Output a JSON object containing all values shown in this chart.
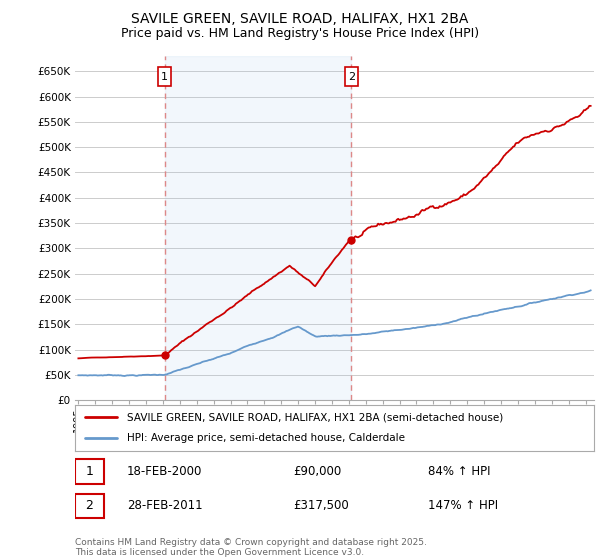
{
  "title": "SAVILE GREEN, SAVILE ROAD, HALIFAX, HX1 2BA",
  "subtitle": "Price paid vs. HM Land Registry's House Price Index (HPI)",
  "ylabel_ticks": [
    "£0",
    "£50K",
    "£100K",
    "£150K",
    "£200K",
    "£250K",
    "£300K",
    "£350K",
    "£400K",
    "£450K",
    "£500K",
    "£550K",
    "£600K",
    "£650K"
  ],
  "ytick_values": [
    0,
    50000,
    100000,
    150000,
    200000,
    250000,
    300000,
    350000,
    400000,
    450000,
    500000,
    550000,
    600000,
    650000
  ],
  "ylim": [
    0,
    680000
  ],
  "xlim_start": 1994.8,
  "xlim_end": 2025.5,
  "background_color": "#ffffff",
  "grid_color": "#cccccc",
  "red_color": "#cc0000",
  "blue_color": "#6699cc",
  "vline_color": "#dd8888",
  "shade_color": "#ddeeff",
  "sale1_year": 2000.1,
  "sale2_year": 2011.15,
  "legend_label_red": "SAVILE GREEN, SAVILE ROAD, HALIFAX, HX1 2BA (semi-detached house)",
  "legend_label_blue": "HPI: Average price, semi-detached house, Calderdale",
  "annotation1_date": "18-FEB-2000",
  "annotation1_price": "£90,000",
  "annotation1_hpi": "84% ↑ HPI",
  "annotation2_date": "28-FEB-2011",
  "annotation2_price": "£317,500",
  "annotation2_hpi": "147% ↑ HPI",
  "footer": "Contains HM Land Registry data © Crown copyright and database right 2025.\nThis data is licensed under the Open Government Licence v3.0.",
  "title_fontsize": 10,
  "subtitle_fontsize": 9
}
